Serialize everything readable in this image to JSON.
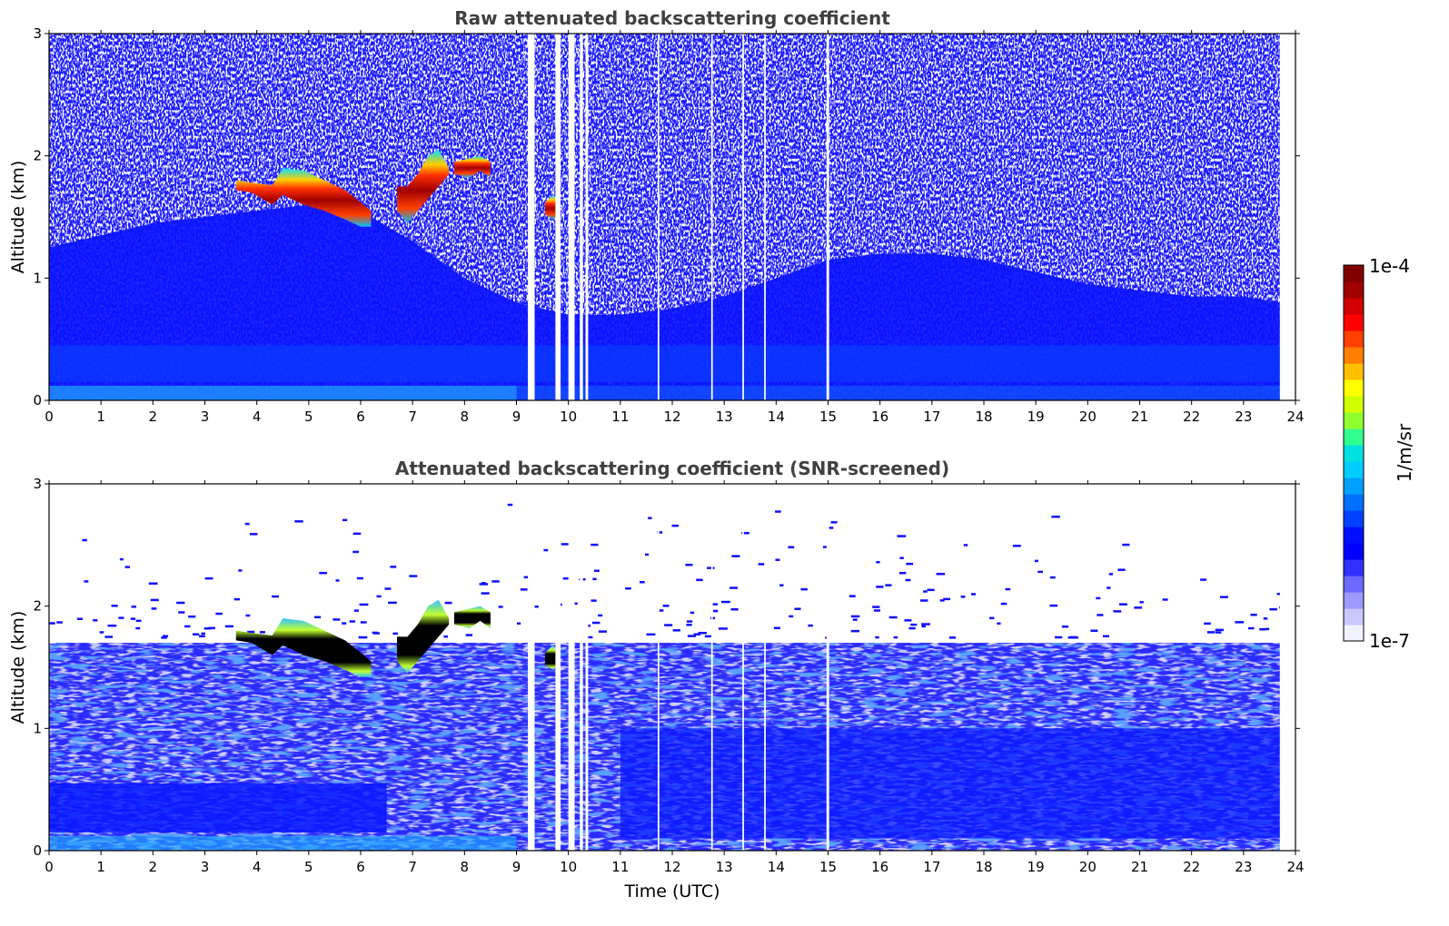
{
  "chart_data": [
    {
      "type": "heatmap",
      "title": "Raw attenuated backscattering coefficient",
      "xlabel": "",
      "ylabel": "Altitude (km)",
      "xlim": [
        0,
        24
      ],
      "ylim": [
        0,
        3
      ],
      "xticks": [
        "0",
        "1",
        "2",
        "3",
        "4",
        "5",
        "6",
        "7",
        "8",
        "9",
        "10",
        "11",
        "12",
        "13",
        "14",
        "15",
        "16",
        "17",
        "18",
        "19",
        "20",
        "21",
        "22",
        "23",
        "24"
      ],
      "yticks": [
        "0",
        "1",
        "2",
        "3"
      ],
      "data_end_time": 23.7,
      "background_top_km": [
        1.25,
        1.35,
        1.45,
        1.5,
        1.55,
        1.6,
        1.55,
        1.3,
        1.0,
        0.8,
        0.7,
        0.7,
        0.75,
        0.85,
        1.0,
        1.15,
        1.2,
        1.2,
        1.15,
        1.05,
        0.95,
        0.9,
        0.85,
        0.85,
        0.8
      ],
      "gaps_utc": [
        [
          9.22,
          9.35
        ],
        [
          9.75,
          9.85
        ],
        [
          10.0,
          10.12
        ],
        [
          10.22,
          10.28
        ],
        [
          10.33,
          10.38
        ],
        [
          11.72,
          11.75
        ],
        [
          12.75,
          12.78
        ],
        [
          13.35,
          13.38
        ],
        [
          13.77,
          13.8
        ],
        [
          14.97,
          15.02
        ]
      ],
      "clouds": [
        {
          "t": [
            3.6,
            3.9,
            4.3,
            4.5,
            4.9,
            5.3,
            5.7,
            6.0,
            6.2
          ],
          "base_km": [
            1.72,
            1.7,
            1.6,
            1.68,
            1.6,
            1.55,
            1.48,
            1.42,
            1.42
          ],
          "top_km": [
            1.8,
            1.78,
            1.76,
            1.9,
            1.88,
            1.8,
            1.72,
            1.62,
            1.55
          ]
        },
        {
          "t": [
            6.7,
            6.9,
            7.1,
            7.3,
            7.5,
            7.7
          ],
          "base_km": [
            1.55,
            1.45,
            1.55,
            1.65,
            1.75,
            1.85
          ],
          "top_km": [
            1.75,
            1.75,
            1.85,
            2.0,
            2.05,
            1.9
          ]
        },
        {
          "t": [
            7.8,
            8.1,
            8.3,
            8.5
          ],
          "base_km": [
            1.85,
            1.82,
            1.88,
            1.82
          ],
          "top_km": [
            1.95,
            1.98,
            2.0,
            1.95
          ]
        },
        {
          "t": [
            9.55,
            9.7,
            9.85
          ],
          "base_km": [
            1.52,
            1.48,
            1.52
          ],
          "top_km": [
            1.62,
            1.68,
            1.62
          ]
        }
      ]
    },
    {
      "type": "heatmap",
      "title": "Attenuated backscattering coefficient (SNR-screened)",
      "xlabel": "Time (UTC)",
      "ylabel": "Altitude (km)",
      "xlim": [
        0,
        24
      ],
      "ylim": [
        0,
        3
      ],
      "xticks": [
        "0",
        "1",
        "2",
        "3",
        "4",
        "5",
        "6",
        "7",
        "8",
        "9",
        "10",
        "11",
        "12",
        "13",
        "14",
        "15",
        "16",
        "17",
        "18",
        "19",
        "20",
        "21",
        "22",
        "23",
        "24"
      ],
      "yticks": [
        "0",
        "1",
        "2",
        "3"
      ],
      "data_end_time": 23.7,
      "screened_top_km": 1.7,
      "clouds": [
        {
          "t": [
            3.6,
            3.9,
            4.3,
            4.5,
            4.9,
            5.3,
            5.7,
            6.0,
            6.2
          ],
          "base_km": [
            1.72,
            1.7,
            1.6,
            1.68,
            1.6,
            1.55,
            1.48,
            1.42,
            1.42
          ],
          "top_km": [
            1.8,
            1.78,
            1.76,
            1.9,
            1.88,
            1.8,
            1.72,
            1.62,
            1.55
          ]
        },
        {
          "t": [
            6.7,
            6.9,
            7.1,
            7.3,
            7.5,
            7.7
          ],
          "base_km": [
            1.55,
            1.45,
            1.55,
            1.65,
            1.75,
            1.85
          ],
          "top_km": [
            1.75,
            1.75,
            1.85,
            2.0,
            2.05,
            1.9
          ]
        },
        {
          "t": [
            7.8,
            8.1,
            8.3,
            8.5
          ],
          "base_km": [
            1.85,
            1.82,
            1.88,
            1.82
          ],
          "top_km": [
            1.95,
            1.98,
            2.0,
            1.95
          ]
        },
        {
          "t": [
            9.55,
            9.7,
            9.85
          ],
          "base_km": [
            1.52,
            1.48,
            1.52
          ],
          "top_km": [
            1.62,
            1.68,
            1.62
          ]
        }
      ]
    }
  ],
  "colorbar": {
    "label": "1/m/sr",
    "max_label": "1e-4",
    "min_label": "1e-7",
    "scale": "log",
    "colors": [
      "#f2f2ff",
      "#c8c8ff",
      "#9a9aff",
      "#6a6aff",
      "#3030ff",
      "#0000ff",
      "#0010ff",
      "#0040ff",
      "#0070ff",
      "#00a0ff",
      "#00ccff",
      "#00e0e0",
      "#30ff90",
      "#90ff30",
      "#d0ff00",
      "#ffff00",
      "#ffc000",
      "#ff8000",
      "#ff4000",
      "#ff0000",
      "#d00000",
      "#a00000",
      "#800000"
    ]
  }
}
